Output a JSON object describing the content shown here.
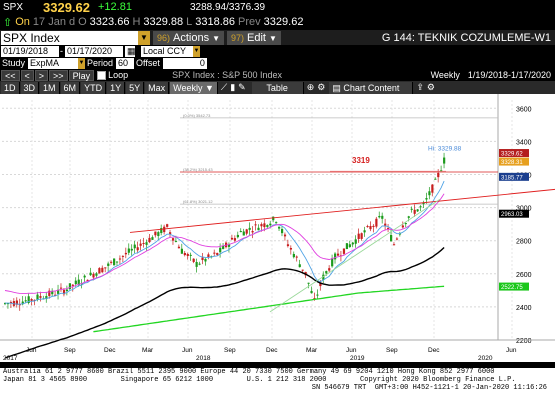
{
  "ticker": {
    "symbol": "SPX",
    "last": "3329.62",
    "change": "+12.81",
    "mini_quote": "3288.94/3376.39"
  },
  "quote": {
    "flag": "On",
    "date": "17 Jan d",
    "open_label": "O",
    "open": "3323.66",
    "high_label": "H",
    "high": "3329.88",
    "low_label": "L",
    "low": "3318.86",
    "prev_label": "Prev",
    "prev": "3329.62"
  },
  "titlebar": {
    "security": "SPX Index",
    "actions_num": "96)",
    "actions_label": "Actions",
    "edit_num": "97)",
    "edit_label": "Edit",
    "page_title": "G 144: TEKNIK COZUMLEME-W1"
  },
  "range_row": {
    "start": "01/19/2018",
    "end": "01/17/2020",
    "currency": "Local CCY"
  },
  "study_row": {
    "study_label": "Study",
    "study_value": "ExpMA",
    "period_label": "Period",
    "period_value": "60",
    "offset_label": "Offset",
    "offset_value": "0"
  },
  "nav_row": {
    "buttons": [
      "<<",
      "<",
      ">",
      ">>"
    ],
    "play": "Play",
    "loop": "Loop",
    "chart_title": "SPX Index : S&P 500 Index",
    "frequency": "Weekly",
    "period_range": "1/19/2018-1/17/2020"
  },
  "toolbar": {
    "ranges": [
      "1D",
      "3D",
      "1M",
      "6M",
      "YTD",
      "1Y",
      "5Y",
      "Max"
    ],
    "interval": "Weekly",
    "table": "Table",
    "chart_content": "Chart Content"
  },
  "chart_data": {
    "type": "candlestick",
    "ylim": [
      2200,
      3650
    ],
    "y_ticks": [
      2200,
      2400,
      2600,
      2800,
      3000,
      3200,
      3400,
      3600
    ],
    "x_labels": [
      "Jun",
      "Sep",
      "Dec",
      "Mar",
      "Jun",
      "Sep",
      "Dec",
      "Mar",
      "Jun",
      "Sep",
      "Dec",
      "Jun"
    ],
    "year_labels": [
      "2017",
      "2018",
      "2019",
      "2020"
    ],
    "annotations": {
      "target": "3319",
      "high_label": "Hi: 3329.88"
    },
    "price_tags": [
      {
        "value": "3329.62",
        "color": "#b41e1e"
      },
      {
        "value": "3328.31",
        "color": "#e6a020"
      },
      {
        "value": "3185.77",
        "color": "#1b3f8f"
      },
      {
        "value": "2963.03",
        "color": "#000000"
      },
      {
        "value": "2522.75",
        "color": "#1cc71c"
      }
    ],
    "fib_labels": [
      "(0.0%) 3542.73",
      "(38.2%) 3215.43",
      "(61.8%) 3021.12"
    ]
  },
  "footer": {
    "line1": "Australia 61 2 9777 8600 Brazil 5511 2395 9000 Europe 44 20 7330 7500 Germany 49 69 9204 1210 Hong Kong 852 2977 6000",
    "line2": "Japan 81 3 4565 8900        Singapore 65 6212 1000        U.S. 1 212 318 2000        Copyright 2020 Bloomberg Finance L.P.",
    "line3": "SN 546679 TRT  GMT+3:00 H452-1121-1 20-Jan-2020 11:16:26"
  }
}
